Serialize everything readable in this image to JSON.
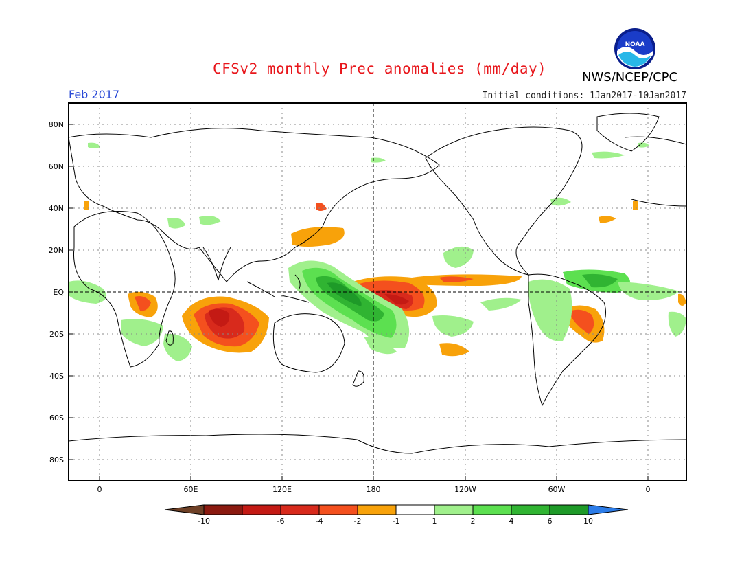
{
  "header": {
    "title": "CFSv2 monthly Prec anomalies (mm/day)",
    "agency": "NWS/NCEP/CPC",
    "month": "Feb 2017",
    "initial_conditions": "Initial conditions: 1Jan2017-10Jan2017",
    "logo_text": "NOAA"
  },
  "map": {
    "lat_labels": [
      "80N",
      "60N",
      "40N",
      "20N",
      "EQ",
      "20S",
      "40S",
      "60S",
      "80S"
    ],
    "lon_labels": [
      "0",
      "60E",
      "120E",
      "180",
      "120W",
      "60W",
      "0"
    ]
  },
  "colorbar": {
    "labels": [
      "-10",
      "-6",
      "-4",
      "-2",
      "-1",
      "1",
      "2",
      "4",
      "6",
      "10"
    ],
    "colors": [
      "#8b1a10",
      "#c41a14",
      "#d82a1c",
      "#f4501e",
      "#f8a20a",
      "#ffffff",
      "#a0f08c",
      "#5ce050",
      "#30b432",
      "#1e9a28",
      "#2c7ce8"
    ],
    "low_color": "#6e4026",
    "high_color": "#2c7ce8"
  }
}
